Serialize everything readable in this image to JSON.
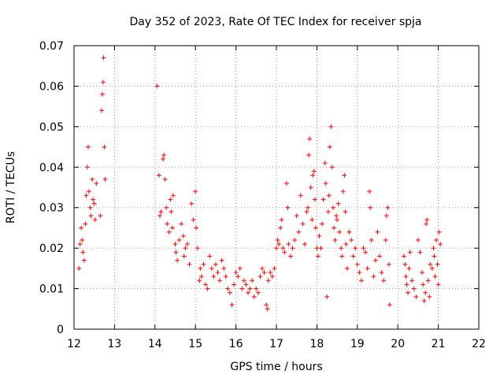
{
  "chart_data": {
    "type": "scatter",
    "title": "Day 352 of 2023, Rate Of TEC Index for receiver spja",
    "xlabel": "GPS time / hours",
    "ylabel": "ROTI / TECUs",
    "xlim": [
      12,
      22
    ],
    "ylim": [
      0,
      0.07
    ],
    "x_ticks": [
      12,
      13,
      14,
      15,
      16,
      17,
      18,
      19,
      20,
      21,
      22
    ],
    "x_tick_labels": [
      "12",
      "13",
      "14",
      "15",
      "16",
      "17",
      "18",
      "19",
      "20",
      "21",
      "22"
    ],
    "y_ticks": [
      0,
      0.01,
      0.02,
      0.03,
      0.04,
      0.05,
      0.06,
      0.07
    ],
    "y_tick_labels": [
      "0",
      "0.01",
      "0.02",
      "0.03",
      "0.04",
      "0.05",
      "0.06",
      "0.07"
    ],
    "grid": true,
    "marker": "+",
    "series": [
      {
        "name": "ROTI",
        "color": "#ff0000",
        "points": [
          [
            12.12,
            0.015
          ],
          [
            12.15,
            0.021
          ],
          [
            12.18,
            0.025
          ],
          [
            12.2,
            0.022
          ],
          [
            12.22,
            0.019
          ],
          [
            12.25,
            0.017
          ],
          [
            12.28,
            0.026
          ],
          [
            12.3,
            0.033
          ],
          [
            12.33,
            0.04
          ],
          [
            12.35,
            0.045
          ],
          [
            12.37,
            0.034
          ],
          [
            12.4,
            0.03
          ],
          [
            12.42,
            0.028
          ],
          [
            12.45,
            0.037
          ],
          [
            12.47,
            0.032
          ],
          [
            12.5,
            0.031
          ],
          [
            12.52,
            0.027
          ],
          [
            12.55,
            0.036
          ],
          [
            12.65,
            0.028
          ],
          [
            12.68,
            0.054
          ],
          [
            12.7,
            0.058
          ],
          [
            12.72,
            0.061
          ],
          [
            12.73,
            0.067
          ],
          [
            12.75,
            0.045
          ],
          [
            12.77,
            0.037
          ],
          [
            14.05,
            0.06
          ],
          [
            14.1,
            0.038
          ],
          [
            14.12,
            0.028
          ],
          [
            14.15,
            0.029
          ],
          [
            14.2,
            0.042
          ],
          [
            14.22,
            0.043
          ],
          [
            14.25,
            0.037
          ],
          [
            14.28,
            0.03
          ],
          [
            14.3,
            0.026
          ],
          [
            14.35,
            0.024
          ],
          [
            14.38,
            0.032
          ],
          [
            14.4,
            0.029
          ],
          [
            14.43,
            0.025
          ],
          [
            14.45,
            0.033
          ],
          [
            14.5,
            0.021
          ],
          [
            14.52,
            0.019
          ],
          [
            14.55,
            0.017
          ],
          [
            14.6,
            0.022
          ],
          [
            14.65,
            0.026
          ],
          [
            14.7,
            0.023
          ],
          [
            14.72,
            0.018
          ],
          [
            14.75,
            0.02
          ],
          [
            14.8,
            0.021
          ],
          [
            14.85,
            0.016
          ],
          [
            14.9,
            0.031
          ],
          [
            14.95,
            0.027
          ],
          [
            15.0,
            0.034
          ],
          [
            15.02,
            0.025
          ],
          [
            15.05,
            0.02
          ],
          [
            15.1,
            0.012
          ],
          [
            15.12,
            0.015
          ],
          [
            15.15,
            0.013
          ],
          [
            15.2,
            0.016
          ],
          [
            15.25,
            0.011
          ],
          [
            15.3,
            0.01
          ],
          [
            15.35,
            0.018
          ],
          [
            15.4,
            0.015
          ],
          [
            15.45,
            0.013
          ],
          [
            15.5,
            0.016
          ],
          [
            15.55,
            0.014
          ],
          [
            15.6,
            0.012
          ],
          [
            15.65,
            0.017
          ],
          [
            15.7,
            0.015
          ],
          [
            15.75,
            0.013
          ],
          [
            15.8,
            0.01
          ],
          [
            15.85,
            0.009
          ],
          [
            15.9,
            0.006
          ],
          [
            15.95,
            0.011
          ],
          [
            16.0,
            0.014
          ],
          [
            16.05,
            0.013
          ],
          [
            16.1,
            0.015
          ],
          [
            16.15,
            0.01
          ],
          [
            16.2,
            0.012
          ],
          [
            16.25,
            0.011
          ],
          [
            16.3,
            0.009
          ],
          [
            16.35,
            0.01
          ],
          [
            16.4,
            0.012
          ],
          [
            16.45,
            0.008
          ],
          [
            16.5,
            0.01
          ],
          [
            16.55,
            0.009
          ],
          [
            16.6,
            0.013
          ],
          [
            16.65,
            0.015
          ],
          [
            16.7,
            0.014
          ],
          [
            16.75,
            0.006
          ],
          [
            16.78,
            0.005
          ],
          [
            16.8,
            0.012
          ],
          [
            16.85,
            0.014
          ],
          [
            16.9,
            0.013
          ],
          [
            16.95,
            0.015
          ],
          [
            17.0,
            0.02
          ],
          [
            17.03,
            0.022
          ],
          [
            17.06,
            0.021
          ],
          [
            17.1,
            0.025
          ],
          [
            17.13,
            0.027
          ],
          [
            17.16,
            0.02
          ],
          [
            17.2,
            0.019
          ],
          [
            17.25,
            0.036
          ],
          [
            17.28,
            0.03
          ],
          [
            17.3,
            0.021
          ],
          [
            17.35,
            0.018
          ],
          [
            17.4,
            0.02
          ],
          [
            17.45,
            0.022
          ],
          [
            17.5,
            0.028
          ],
          [
            17.55,
            0.024
          ],
          [
            17.6,
            0.033
          ],
          [
            17.65,
            0.026
          ],
          [
            17.7,
            0.021
          ],
          [
            17.75,
            0.029
          ],
          [
            17.78,
            0.03
          ],
          [
            17.8,
            0.043
          ],
          [
            17.82,
            0.047
          ],
          [
            17.85,
            0.035
          ],
          [
            17.88,
            0.027
          ],
          [
            17.9,
            0.038
          ],
          [
            17.93,
            0.039
          ],
          [
            17.95,
            0.032
          ],
          [
            17.97,
            0.025
          ],
          [
            18.0,
            0.02
          ],
          [
            18.03,
            0.018
          ],
          [
            18.06,
            0.023
          ],
          [
            18.1,
            0.02
          ],
          [
            18.13,
            0.026
          ],
          [
            18.16,
            0.032
          ],
          [
            18.2,
            0.041
          ],
          [
            18.22,
            0.036
          ],
          [
            18.25,
            0.008
          ],
          [
            18.28,
            0.029
          ],
          [
            18.3,
            0.033
          ],
          [
            18.32,
            0.045
          ],
          [
            18.35,
            0.05
          ],
          [
            18.38,
            0.04
          ],
          [
            18.4,
            0.03
          ],
          [
            18.42,
            0.025
          ],
          [
            18.45,
            0.022
          ],
          [
            18.48,
            0.028
          ],
          [
            18.5,
            0.027
          ],
          [
            18.53,
            0.031
          ],
          [
            18.56,
            0.024
          ],
          [
            18.6,
            0.02
          ],
          [
            18.62,
            0.018
          ],
          [
            18.65,
            0.034
          ],
          [
            18.68,
            0.038
          ],
          [
            18.7,
            0.029
          ],
          [
            18.72,
            0.021
          ],
          [
            18.75,
            0.015
          ],
          [
            18.8,
            0.024
          ],
          [
            18.85,
            0.022
          ],
          [
            18.9,
            0.018
          ],
          [
            18.95,
            0.02
          ],
          [
            19.0,
            0.016
          ],
          [
            19.05,
            0.014
          ],
          [
            19.1,
            0.012
          ],
          [
            19.15,
            0.02
          ],
          [
            19.2,
            0.019
          ],
          [
            19.25,
            0.015
          ],
          [
            19.3,
            0.034
          ],
          [
            19.32,
            0.03
          ],
          [
            19.35,
            0.022
          ],
          [
            19.4,
            0.013
          ],
          [
            19.45,
            0.017
          ],
          [
            19.5,
            0.024
          ],
          [
            19.55,
            0.018
          ],
          [
            19.6,
            0.014
          ],
          [
            19.65,
            0.012
          ],
          [
            19.7,
            0.022
          ],
          [
            19.72,
            0.028
          ],
          [
            19.75,
            0.03
          ],
          [
            19.78,
            0.016
          ],
          [
            19.8,
            0.006
          ],
          [
            20.15,
            0.018
          ],
          [
            20.18,
            0.016
          ],
          [
            20.2,
            0.013
          ],
          [
            20.22,
            0.011
          ],
          [
            20.25,
            0.009
          ],
          [
            20.28,
            0.015
          ],
          [
            20.3,
            0.019
          ],
          [
            20.35,
            0.012
          ],
          [
            20.4,
            0.01
          ],
          [
            20.45,
            0.008
          ],
          [
            20.5,
            0.022
          ],
          [
            20.55,
            0.019
          ],
          [
            20.6,
            0.014
          ],
          [
            20.62,
            0.011
          ],
          [
            20.65,
            0.007
          ],
          [
            20.68,
            0.009
          ],
          [
            20.7,
            0.026
          ],
          [
            20.72,
            0.027
          ],
          [
            20.75,
            0.012
          ],
          [
            20.78,
            0.008
          ],
          [
            20.8,
            0.016
          ],
          [
            20.85,
            0.015
          ],
          [
            20.88,
            0.02
          ],
          [
            20.9,
            0.018
          ],
          [
            20.92,
            0.013
          ],
          [
            20.95,
            0.022
          ],
          [
            20.98,
            0.016
          ],
          [
            21.0,
            0.011
          ],
          [
            21.02,
            0.024
          ],
          [
            21.05,
            0.021
          ]
        ]
      }
    ]
  }
}
